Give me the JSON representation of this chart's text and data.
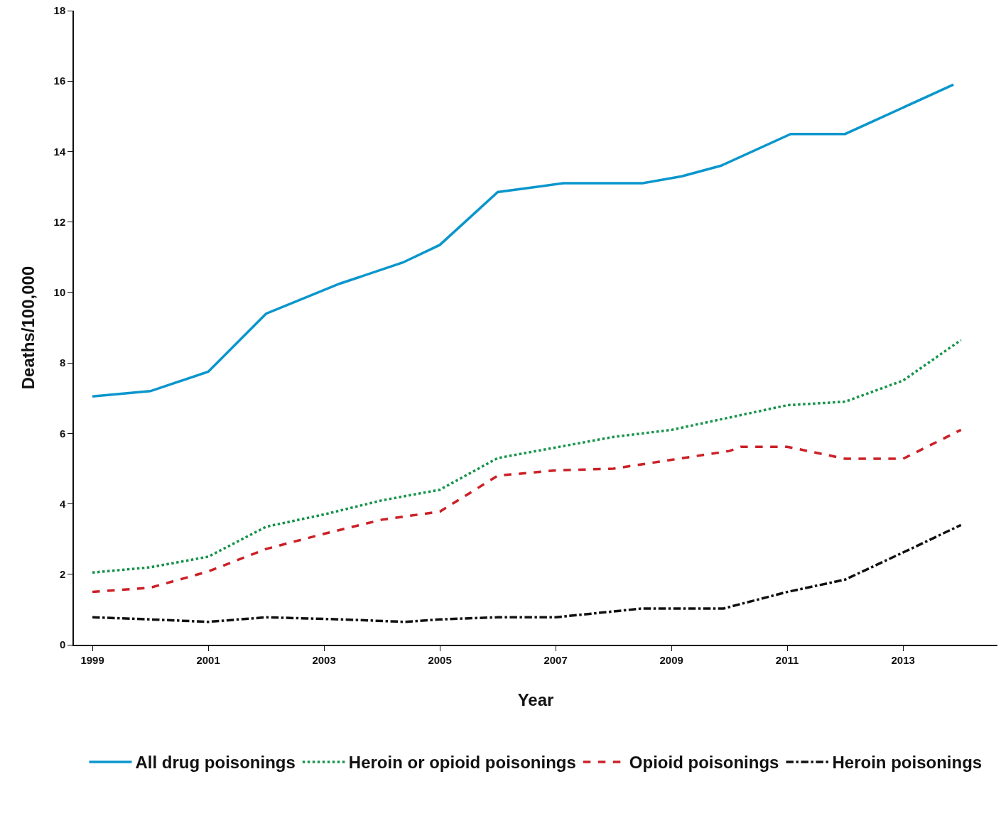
{
  "chart_data": {
    "type": "line",
    "xlabel": "Year",
    "ylabel": "Deaths/100,000",
    "xlim": [
      1998.68,
      2014.63
    ],
    "xticks": [
      1999,
      2001,
      2003,
      2005,
      2007,
      2009,
      2011,
      2013
    ],
    "ylim": [
      0,
      18
    ],
    "yticks": [
      0,
      2,
      4,
      6,
      8,
      10,
      12,
      14,
      16,
      18
    ],
    "grid": false,
    "legend": "bottom",
    "marker": "none",
    "series": [
      {
        "name": "All drug poisonings",
        "color": "#0a96cc",
        "line_style": "solid",
        "x": [
          1999,
          2000,
          2001,
          2002,
          2003.27,
          2004.36,
          2005,
          2006,
          2007.13,
          2008.5,
          2009.18,
          2009.86,
          2011.06,
          2012,
          2013.87
        ],
        "values": [
          7.05,
          7.2,
          7.75,
          9.4,
          10.25,
          10.85,
          11.35,
          12.85,
          13.1,
          13.1,
          13.3,
          13.6,
          14.5,
          14.5,
          15.9
        ]
      },
      {
        "name": "Heroin or opioid poisonings",
        "color": "#16934a",
        "line_style": "dotted",
        "x": [
          1999,
          2000,
          2001,
          2002,
          2003,
          2004,
          2005,
          2006,
          2007,
          2008,
          2009,
          2010,
          2011,
          2012,
          2013,
          2014
        ],
        "values": [
          2.05,
          2.2,
          2.5,
          3.35,
          3.7,
          4.1,
          4.4,
          5.3,
          5.6,
          5.9,
          6.1,
          6.45,
          6.8,
          6.9,
          7.5,
          8.65
        ]
      },
      {
        "name": "Opioid poisonings",
        "color": "#cc2027",
        "line_style": "dashed",
        "x": [
          1999,
          2000,
          2001,
          2002,
          2003,
          2004,
          2005,
          2006,
          2007,
          2008,
          2009,
          2010,
          2010.2,
          2011,
          2012,
          2013,
          2014
        ],
        "values": [
          1.5,
          1.62,
          2.08,
          2.72,
          3.15,
          3.55,
          3.78,
          4.8,
          4.95,
          5.0,
          5.25,
          5.5,
          5.62,
          5.62,
          5.28,
          5.28,
          6.1
        ]
      },
      {
        "name": "Heroin poisonings",
        "color": "#111111",
        "line_style": "dashdot",
        "x": [
          1999,
          2000,
          2001,
          2002,
          2003.3,
          2004.4,
          2005,
          2006,
          2007,
          2008.5,
          2009.9,
          2011,
          2012,
          2013,
          2014
        ],
        "values": [
          0.78,
          0.72,
          0.65,
          0.78,
          0.72,
          0.65,
          0.72,
          0.78,
          0.78,
          1.03,
          1.03,
          1.5,
          1.85,
          2.62,
          3.4
        ]
      }
    ]
  }
}
